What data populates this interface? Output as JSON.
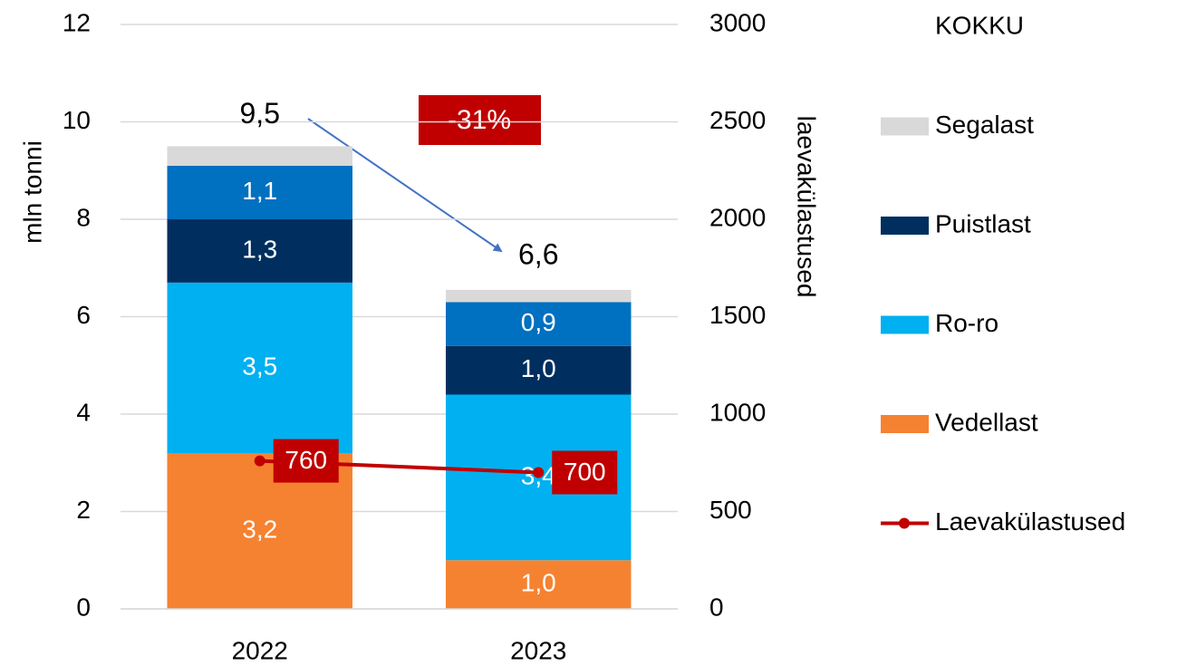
{
  "chart_data": {
    "type": "bar",
    "stacked": true,
    "categories": [
      "2022",
      "2023"
    ],
    "ylabel": "mln tonni",
    "y2label": "laevakülastused",
    "ylim": [
      0,
      12
    ],
    "yticks": [
      0,
      2,
      4,
      6,
      8,
      10,
      12
    ],
    "y2lim": [
      0,
      3000
    ],
    "y2ticks": [
      0,
      500,
      1000,
      1500,
      2000,
      2500,
      3000
    ],
    "grid": true,
    "legend": "right",
    "totals": {
      "name": "KOKKU",
      "values": [
        9.5,
        6.6
      ],
      "value_labels": [
        "9,5",
        "6,6"
      ]
    },
    "annotation": {
      "text": "-31%",
      "color": "#c00000"
    },
    "series": [
      {
        "name": "Vedellast",
        "color": "#f58230",
        "values": [
          3.2,
          1.0
        ],
        "value_labels": [
          "3,2",
          "1,0"
        ]
      },
      {
        "name": "Ro-ro",
        "color": "#00b0f0",
        "values": [
          3.5,
          3.4
        ],
        "value_labels": [
          "3,5",
          "3,4"
        ]
      },
      {
        "name": "Puistlast",
        "color": "#002f5f",
        "values": [
          1.3,
          1.0
        ],
        "value_labels": [
          "1,3",
          "1,0"
        ]
      },
      {
        "name": null,
        "color": "#0070c0",
        "values": [
          1.1,
          0.9
        ],
        "value_labels": [
          "1,1",
          "0,9"
        ]
      },
      {
        "name": "Segalast",
        "color": "#d9d9d9",
        "values": [
          0.4,
          0.25
        ]
      },
      {
        "name": "Laevakülastused",
        "type": "line",
        "axis": "y2",
        "color": "#c00000",
        "values": [
          760,
          700
        ]
      }
    ]
  }
}
